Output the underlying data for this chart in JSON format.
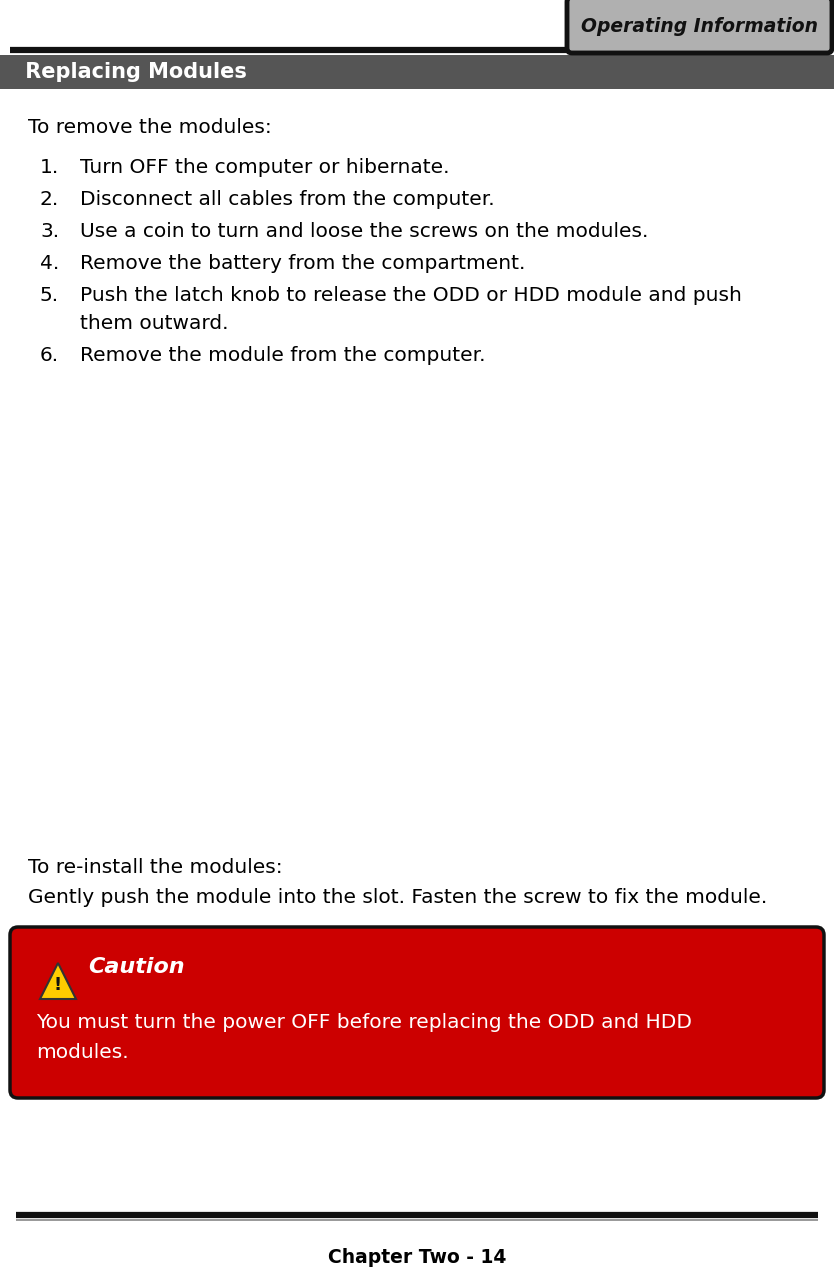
{
  "title_box_text": "Operating Information",
  "section_title": " Replacing Modules",
  "section_bg": "#555555",
  "section_text_color": "#ffffff",
  "body_text_color": "#000000",
  "remove_intro": "To remove the modules:",
  "remove_steps": [
    "Turn OFF the computer or hibernate.",
    "Disconnect all cables from the computer.",
    "Use a coin to turn and loose the screws on the modules.",
    "Remove the battery from the compartment.",
    "Push the latch knob to release the ODD or HDD module and push\n    them outward.",
    "Remove the module from the computer."
  ],
  "reinstall_intro": "To re-install the modules:",
  "reinstall_text": "Gently push the module into the slot. Fasten the screw to fix the module.",
  "caution_title": "Caution",
  "caution_body_line1": "You must turn the power OFF before replacing the ODD and HDD",
  "caution_body_line2": "modules.",
  "caution_bg": "#cc0000",
  "caution_border": "#111111",
  "footer_text": "Chapter Two - 14",
  "page_bg": "#ffffff",
  "header_line_color": "#111111",
  "footer_line_color": "#111111",
  "fig_w": 8.34,
  "fig_h": 12.84,
  "dpi": 100
}
